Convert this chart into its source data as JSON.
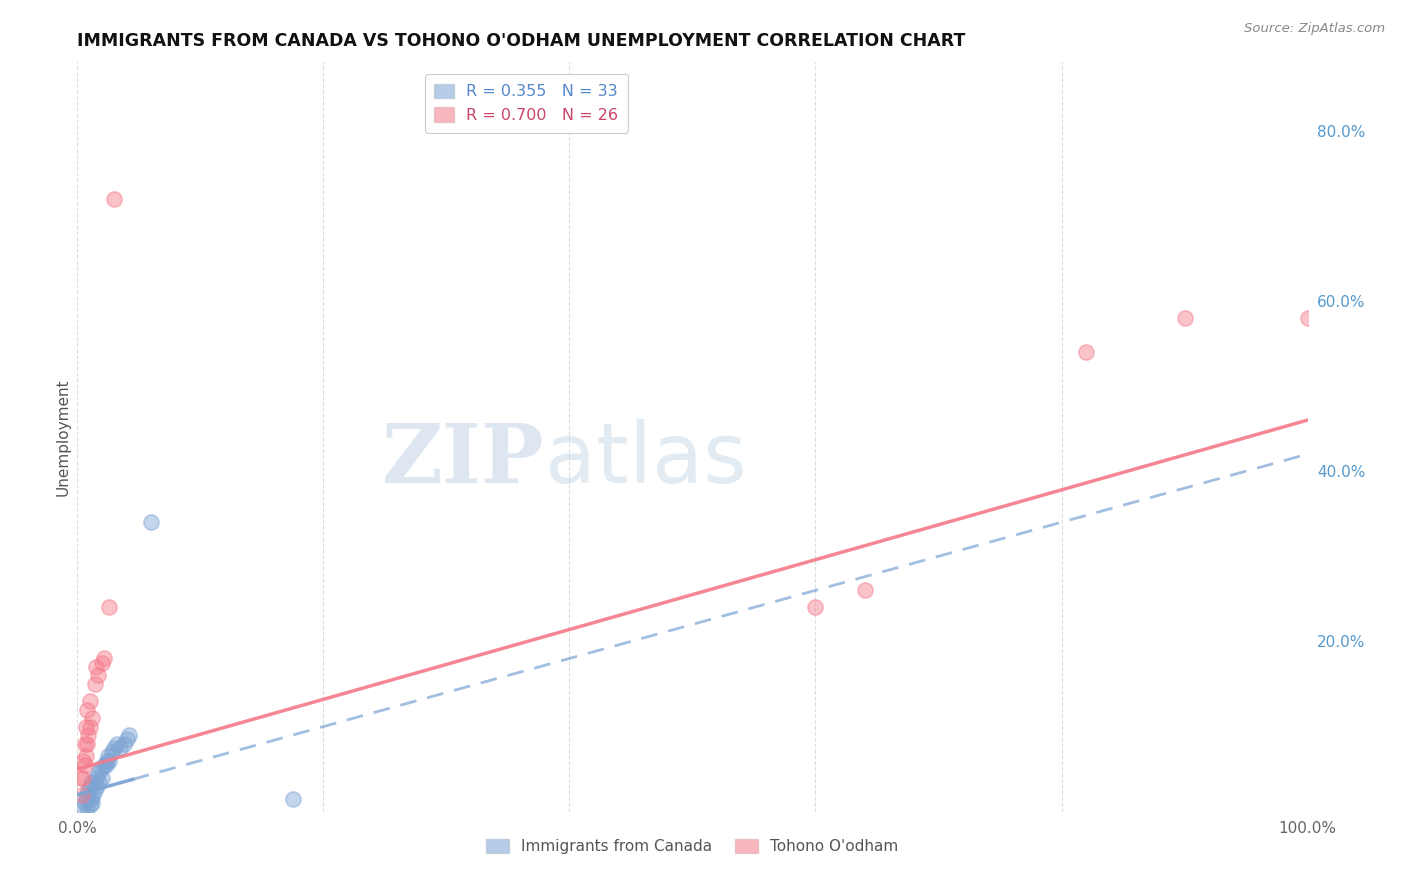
{
  "title": "IMMIGRANTS FROM CANADA VS TOHONO O'ODHAM UNEMPLOYMENT CORRELATION CHART",
  "source": "Source: ZipAtlas.com",
  "ylabel": "Unemployment",
  "r_blue": 0.355,
  "n_blue": 33,
  "r_pink": 0.7,
  "n_pink": 26,
  "xlim": [
    0.0,
    1.0
  ],
  "ylim": [
    0.0,
    0.88
  ],
  "xtick_positions": [
    0.0,
    0.2,
    0.4,
    0.6,
    0.8,
    1.0
  ],
  "xticklabels": [
    "0.0%",
    "",
    "",
    "",
    "",
    "100.0%"
  ],
  "yticks_right": [
    0.0,
    0.2,
    0.4,
    0.6,
    0.8
  ],
  "yticklabels_right": [
    "",
    "20.0%",
    "40.0%",
    "60.0%",
    "80.0%"
  ],
  "blue_color": "#7ba3d4",
  "pink_color": "#f47a8a",
  "blue_scatter": [
    [
      0.005,
      0.005
    ],
    [
      0.006,
      0.01
    ],
    [
      0.007,
      0.015
    ],
    [
      0.008,
      0.005
    ],
    [
      0.008,
      0.02
    ],
    [
      0.009,
      0.025
    ],
    [
      0.01,
      0.008
    ],
    [
      0.01,
      0.03
    ],
    [
      0.011,
      0.015
    ],
    [
      0.012,
      0.01
    ],
    [
      0.012,
      0.035
    ],
    [
      0.013,
      0.02
    ],
    [
      0.014,
      0.025
    ],
    [
      0.015,
      0.04
    ],
    [
      0.016,
      0.03
    ],
    [
      0.017,
      0.045
    ],
    [
      0.018,
      0.035
    ],
    [
      0.019,
      0.05
    ],
    [
      0.02,
      0.04
    ],
    [
      0.022,
      0.055
    ],
    [
      0.023,
      0.055
    ],
    [
      0.024,
      0.06
    ],
    [
      0.025,
      0.065
    ],
    [
      0.026,
      0.06
    ],
    [
      0.028,
      0.07
    ],
    [
      0.03,
      0.075
    ],
    [
      0.032,
      0.08
    ],
    [
      0.035,
      0.075
    ],
    [
      0.038,
      0.08
    ],
    [
      0.04,
      0.085
    ],
    [
      0.042,
      0.09
    ],
    [
      0.06,
      0.34
    ],
    [
      0.175,
      0.015
    ]
  ],
  "pink_scatter": [
    [
      0.003,
      0.04
    ],
    [
      0.004,
      0.02
    ],
    [
      0.005,
      0.04
    ],
    [
      0.005,
      0.06
    ],
    [
      0.006,
      0.055
    ],
    [
      0.006,
      0.08
    ],
    [
      0.007,
      0.065
    ],
    [
      0.007,
      0.1
    ],
    [
      0.008,
      0.08
    ],
    [
      0.008,
      0.12
    ],
    [
      0.009,
      0.09
    ],
    [
      0.01,
      0.1
    ],
    [
      0.01,
      0.13
    ],
    [
      0.012,
      0.11
    ],
    [
      0.014,
      0.15
    ],
    [
      0.015,
      0.17
    ],
    [
      0.017,
      0.16
    ],
    [
      0.02,
      0.175
    ],
    [
      0.022,
      0.18
    ],
    [
      0.026,
      0.24
    ],
    [
      0.03,
      0.72
    ],
    [
      0.6,
      0.24
    ],
    [
      0.64,
      0.26
    ],
    [
      0.82,
      0.54
    ],
    [
      0.9,
      0.58
    ],
    [
      1.0,
      0.58
    ]
  ],
  "watermark_zip": "ZIP",
  "watermark_atlas": "atlas",
  "background_color": "#ffffff",
  "grid_color": "#dddddd",
  "grid_style": "--"
}
